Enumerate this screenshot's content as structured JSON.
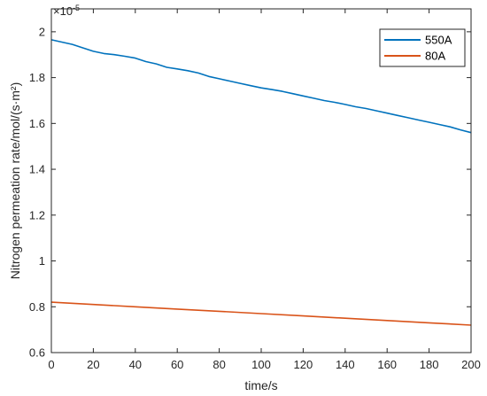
{
  "chart_data": {
    "type": "line",
    "xlabel": "time/s",
    "ylabel": "Nitrogen permeation rate/mol/(s·m²)",
    "exponent_label": "×10",
    "exponent_power": "-5",
    "xlim": [
      0,
      200
    ],
    "ylim": [
      0.6,
      2.1
    ],
    "xticks": [
      0,
      20,
      40,
      60,
      80,
      100,
      120,
      140,
      160,
      180,
      200
    ],
    "xtick_labels": [
      "0",
      "20",
      "40",
      "60",
      "80",
      "100",
      "120",
      "140",
      "160",
      "180",
      "200"
    ],
    "yticks": [
      0.6,
      0.8,
      1.0,
      1.2,
      1.4,
      1.6,
      1.8,
      2.0
    ],
    "ytick_labels": [
      "0.6",
      "0.8",
      "1",
      "1.2",
      "1.4",
      "1.6",
      "1.8",
      "2"
    ],
    "grid": false,
    "legend_position": "top-right",
    "series": [
      {
        "name": "550A",
        "color": "#0072BD",
        "x": [
          0,
          5,
          10,
          15,
          20,
          25,
          30,
          35,
          40,
          45,
          50,
          55,
          60,
          65,
          70,
          75,
          80,
          85,
          90,
          95,
          100,
          105,
          110,
          115,
          120,
          125,
          130,
          135,
          140,
          145,
          150,
          155,
          160,
          165,
          170,
          175,
          180,
          185,
          190,
          195,
          200
        ],
        "y": [
          1.965,
          1.955,
          1.945,
          1.93,
          1.915,
          1.905,
          1.9,
          1.893,
          1.885,
          1.87,
          1.86,
          1.845,
          1.838,
          1.83,
          1.82,
          1.805,
          1.795,
          1.785,
          1.775,
          1.765,
          1.755,
          1.748,
          1.74,
          1.73,
          1.72,
          1.71,
          1.7,
          1.692,
          1.683,
          1.673,
          1.665,
          1.655,
          1.645,
          1.635,
          1.625,
          1.615,
          1.605,
          1.595,
          1.585,
          1.572,
          1.56
        ]
      },
      {
        "name": "80A",
        "color": "#D95319",
        "x": [
          0,
          20,
          40,
          60,
          80,
          100,
          120,
          140,
          160,
          180,
          200
        ],
        "y": [
          0.82,
          0.81,
          0.8,
          0.79,
          0.78,
          0.77,
          0.76,
          0.75,
          0.74,
          0.73,
          0.72
        ]
      }
    ]
  }
}
